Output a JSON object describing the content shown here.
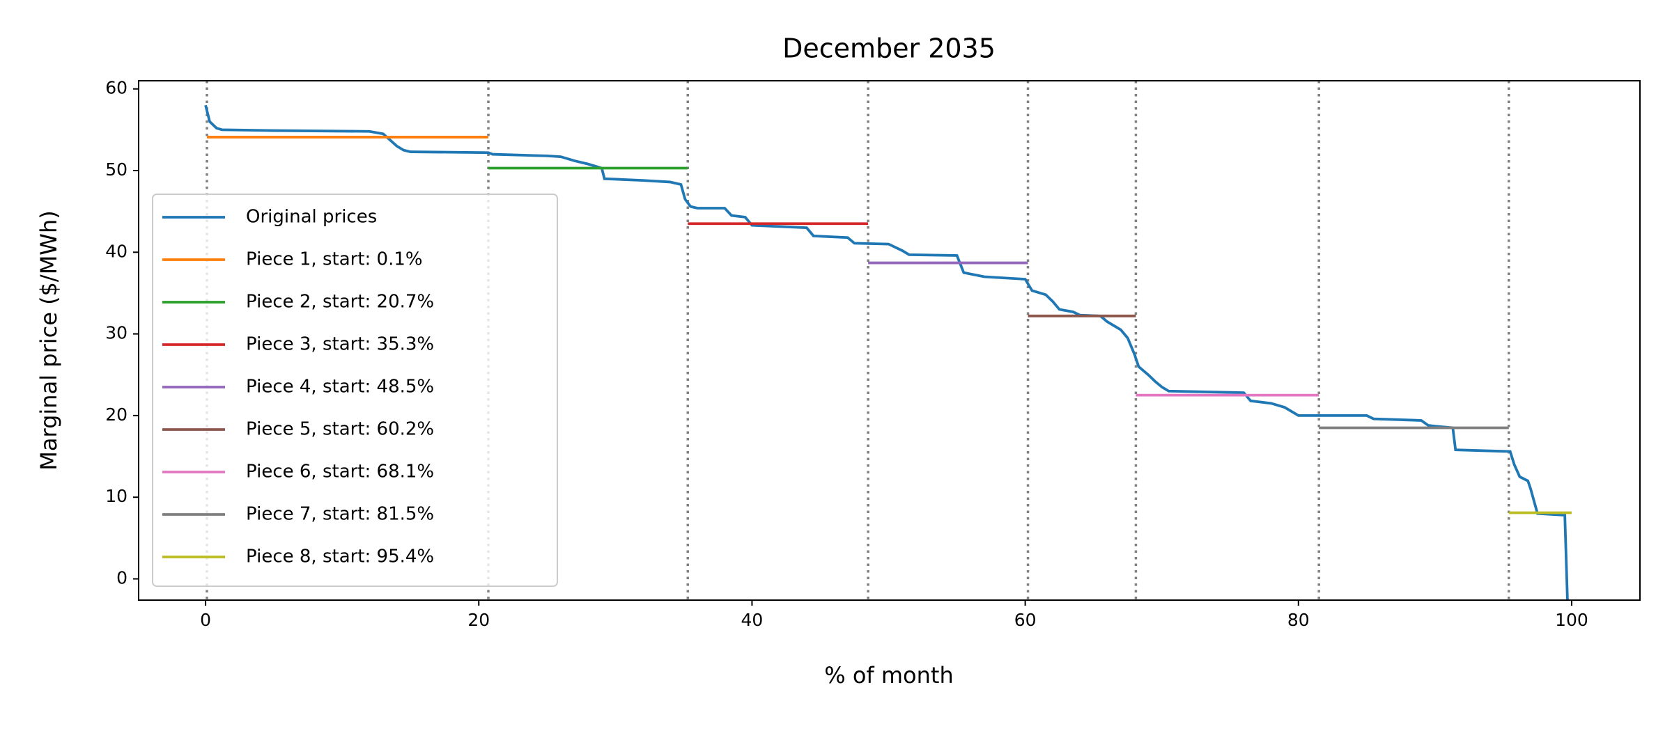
{
  "chart_data": {
    "type": "line",
    "title": "December 2035",
    "xlabel": "% of month",
    "ylabel": "Marginal price ($/MWh)",
    "xlim": [
      -4.9,
      105
    ],
    "ylim": [
      -2.6,
      61.0
    ],
    "xticks": [
      0,
      20,
      40,
      60,
      80,
      100
    ],
    "yticks": [
      0,
      10,
      20,
      30,
      40,
      50,
      60
    ],
    "grid": false,
    "legend": "lower left",
    "series": [
      {
        "name": "Original prices",
        "color": "#1f77b4",
        "x": [
          0,
          0.3,
          0.8,
          1.2,
          5,
          12,
          13,
          14,
          14.5,
          15,
          20.7,
          21,
          25,
          26,
          27,
          28,
          29,
          29.2,
          32,
          34,
          34.8,
          35.1,
          35.5,
          36,
          38,
          38.5,
          39.5,
          40,
          44,
          44.5,
          47,
          47.5,
          50,
          51,
          51.5,
          55,
          55.5,
          57,
          60,
          60.5,
          61.5,
          62,
          62.5,
          63.5,
          64,
          65.5,
          66,
          67,
          67.5,
          68,
          68.3,
          69,
          69.5,
          70,
          70.5,
          76,
          76.5,
          78,
          79,
          80,
          85,
          85.5,
          89,
          89.5,
          90,
          91.3,
          91.5,
          95.5,
          95.8,
          96.2,
          96.8,
          97,
          97.5,
          99.5,
          99.7,
          100
        ],
        "values": [
          58,
          56,
          55.2,
          55,
          54.9,
          54.8,
          54.5,
          53,
          52.5,
          52.3,
          52.2,
          52,
          51.8,
          51.7,
          51.2,
          50.8,
          50.3,
          49,
          48.8,
          48.6,
          48.3,
          46.5,
          45.6,
          45.4,
          45.4,
          44.5,
          44.3,
          43.3,
          43,
          42,
          41.8,
          41.1,
          41,
          40.2,
          39.7,
          39.6,
          37.5,
          37,
          36.7,
          35.3,
          34.8,
          34,
          33,
          32.7,
          32.3,
          32.2,
          31.5,
          30.5,
          29.5,
          27.5,
          26,
          25,
          24.2,
          23.5,
          23,
          22.8,
          21.8,
          21.5,
          21,
          20,
          20,
          19.6,
          19.4,
          18.8,
          18.7,
          18.5,
          15.8,
          15.6,
          14,
          12.5,
          12,
          11,
          8,
          7.8,
          -3,
          -3
        ]
      },
      {
        "name": "Piece 1, start: 0.1%",
        "color": "#ff7f0e",
        "x": [
          0.1,
          20.7
        ],
        "values": [
          54.1,
          54.1
        ]
      },
      {
        "name": "Piece 2, start: 20.7%",
        "color": "#2ca02c",
        "x": [
          20.7,
          35.3
        ],
        "values": [
          50.3,
          50.3
        ]
      },
      {
        "name": "Piece 3, start: 35.3%",
        "color": "#d62728",
        "x": [
          35.3,
          48.5
        ],
        "values": [
          43.5,
          43.5
        ]
      },
      {
        "name": "Piece 4, start: 48.5%",
        "color": "#9467bd",
        "x": [
          48.5,
          60.2
        ],
        "values": [
          38.7,
          38.7
        ]
      },
      {
        "name": "Piece 5, start: 60.2%",
        "color": "#8c564b",
        "x": [
          60.2,
          68.1
        ],
        "values": [
          32.2,
          32.2
        ]
      },
      {
        "name": "Piece 6, start: 68.1%",
        "color": "#e377c2",
        "x": [
          68.1,
          81.5
        ],
        "values": [
          22.5,
          22.5
        ]
      },
      {
        "name": "Piece 7, start: 81.5%",
        "color": "#7f7f7f",
        "x": [
          81.5,
          95.4
        ],
        "values": [
          18.5,
          18.5
        ]
      },
      {
        "name": "Piece 8, start: 95.4%",
        "color": "#bcbd22",
        "x": [
          95.4,
          100
        ],
        "values": [
          8.1,
          8.1
        ]
      }
    ]
  }
}
